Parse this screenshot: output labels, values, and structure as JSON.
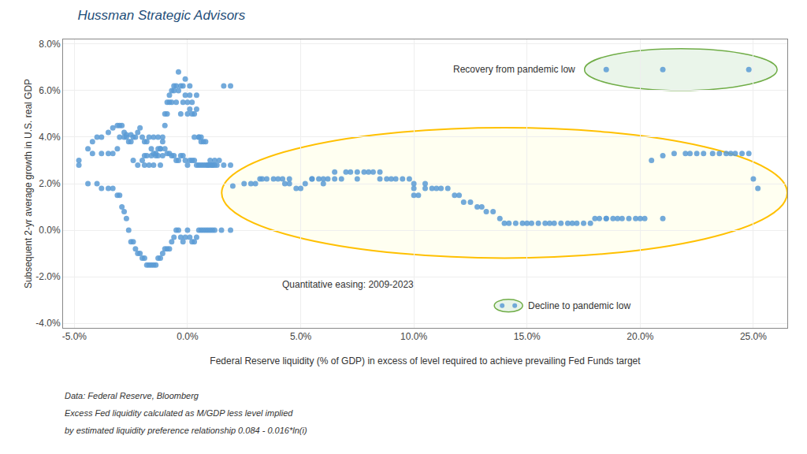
{
  "chart_data": {
    "type": "scatter",
    "title": "Hussman Strategic Advisors",
    "xlabel": "Federal Reserve liquidity (% of GDP) in excess of level required to achieve prevailing Fed Funds target",
    "ylabel": "Subsequent 2-yr average growth in U.S. real GDP",
    "color": "#5B9BD5",
    "grid": true,
    "xlim": [
      -0.055,
      0.265
    ],
    "ylim": [
      -0.042,
      0.082
    ],
    "xticks": [
      {
        "value": -0.05,
        "label": "-5.0%"
      },
      {
        "value": 0.0,
        "label": "0.0%"
      },
      {
        "value": 0.05,
        "label": "5.0%"
      },
      {
        "value": 0.1,
        "label": "10.0%"
      },
      {
        "value": 0.15,
        "label": "15.0%"
      },
      {
        "value": 0.2,
        "label": "20.0%"
      },
      {
        "value": 0.25,
        "label": "25.0%"
      }
    ],
    "yticks": [
      {
        "value": -0.04,
        "label": "-4.0%"
      },
      {
        "value": -0.02,
        "label": "-2.0%"
      },
      {
        "value": 0.0,
        "label": "0.0%"
      },
      {
        "value": 0.02,
        "label": "2.0%"
      },
      {
        "value": 0.04,
        "label": "4.0%"
      },
      {
        "value": 0.06,
        "label": "6.0%"
      },
      {
        "value": 0.08,
        "label": "8.0%"
      }
    ],
    "annotations": [
      "Quantitative easing: 2009-2023",
      "Recovery from pandemic low",
      "Decline to pandemic low",
      "Data: Federal Reserve, Bloomberg",
      "Excess Fed liquidity calculated as M/GDP less level implied",
      "by estimated liquidity preference relationship 0.084 - 0.016*ln(i)"
    ],
    "series": [
      {
        "x": [
          -0.048,
          -0.042,
          -0.038,
          -0.035,
          -0.033,
          -0.031,
          -0.03,
          -0.028,
          -0.027,
          -0.025,
          -0.024,
          -0.022,
          -0.02,
          -0.019,
          -0.019,
          -0.018,
          -0.017,
          -0.016,
          -0.015,
          -0.015,
          -0.014,
          -0.013,
          -0.013,
          -0.012,
          -0.012,
          -0.011,
          -0.011,
          -0.01,
          -0.01,
          -0.009,
          -0.009,
          -0.008,
          -0.008,
          -0.007,
          -0.007,
          -0.006,
          -0.006,
          -0.005,
          -0.005,
          -0.004,
          -0.004,
          -0.003,
          -0.003,
          -0.002,
          -0.002,
          -0.001,
          -0.001,
          0.0,
          0.0,
          0.001,
          0.001,
          0.001,
          0.002,
          0.002,
          0.003,
          0.003,
          0.004,
          0.004,
          0.005,
          0.005,
          0.006,
          0.006,
          0.007,
          0.008,
          0.009,
          0.01,
          0.011,
          0.012,
          0.013,
          0.014,
          0.016,
          0.019,
          -0.048,
          -0.044,
          -0.04,
          -0.038,
          -0.035,
          -0.033,
          -0.031,
          -0.03,
          -0.029,
          -0.028,
          -0.027,
          -0.026,
          -0.025,
          -0.024,
          -0.023,
          -0.022,
          -0.021,
          -0.02,
          -0.019,
          -0.018,
          -0.017,
          -0.016,
          -0.015,
          -0.014,
          -0.013,
          -0.012,
          -0.011,
          -0.01,
          -0.009,
          -0.008,
          -0.007,
          -0.006,
          -0.005,
          -0.004,
          -0.003,
          -0.002,
          -0.001,
          0.0,
          0.001,
          0.002,
          0.003,
          0.004,
          0.005,
          0.006,
          0.007,
          0.008,
          0.009,
          0.01,
          0.011,
          0.012,
          0.015,
          0.019,
          -0.044,
          -0.042,
          -0.04,
          -0.038,
          -0.035,
          -0.033,
          -0.031,
          -0.03,
          -0.029,
          -0.028,
          -0.027,
          -0.026,
          -0.025,
          -0.024,
          -0.023,
          -0.022,
          -0.021,
          -0.02,
          -0.019,
          -0.018,
          -0.017,
          -0.016,
          -0.015,
          -0.014,
          -0.013,
          -0.012,
          -0.011,
          -0.01,
          -0.009,
          -0.008,
          -0.007,
          -0.006,
          -0.005,
          -0.004,
          -0.003,
          -0.002,
          -0.001,
          0.0,
          0.001,
          0.002,
          0.003,
          0.004,
          0.005,
          0.006,
          0.007,
          0.008,
          0.009,
          0.01,
          0.011,
          0.012,
          0.016,
          0.019
        ],
        "values": [
          0.028,
          0.033,
          0.033,
          0.033,
          0.033,
          0.035,
          0.04,
          0.04,
          0.041,
          0.041,
          0.03,
          0.028,
          0.03,
          0.028,
          0.032,
          0.032,
          0.028,
          0.032,
          0.028,
          0.04,
          0.032,
          0.032,
          0.04,
          0.028,
          0.035,
          0.032,
          0.04,
          0.045,
          0.05,
          0.05,
          0.055,
          0.055,
          0.058,
          0.055,
          0.06,
          0.06,
          0.062,
          0.055,
          0.062,
          0.06,
          0.068,
          0.062,
          0.05,
          0.055,
          0.062,
          0.058,
          0.065,
          0.05,
          0.055,
          0.052,
          0.058,
          0.062,
          0.05,
          0.055,
          0.05,
          0.04,
          0.052,
          0.058,
          0.04,
          0.04,
          0.038,
          0.04,
          0.038,
          0.038,
          0.028,
          0.028,
          0.028,
          0.028,
          0.028,
          0.03,
          0.062,
          0.062,
          0.03,
          0.02,
          0.02,
          0.018,
          0.018,
          0.018,
          0.015,
          0.015,
          0.01,
          0.008,
          0.005,
          0.0,
          -0.005,
          -0.005,
          -0.008,
          -0.01,
          -0.01,
          -0.012,
          -0.012,
          -0.015,
          -0.015,
          -0.015,
          -0.015,
          -0.015,
          -0.012,
          -0.012,
          -0.01,
          -0.008,
          -0.008,
          -0.008,
          -0.005,
          -0.003,
          0.0,
          0.0,
          -0.003,
          -0.005,
          -0.003,
          0.0,
          -0.003,
          -0.005,
          -0.005,
          -0.003,
          0.0,
          0.0,
          0.0,
          0.0,
          0.0,
          0.0,
          0.0,
          0.0,
          0.0,
          0.0,
          0.035,
          0.038,
          0.04,
          0.04,
          0.042,
          0.044,
          0.045,
          0.045,
          0.045,
          0.042,
          0.04,
          0.038,
          0.038,
          0.04,
          0.04,
          0.042,
          0.044,
          0.04,
          0.038,
          0.038,
          0.04,
          0.035,
          0.033,
          0.033,
          0.035,
          0.035,
          0.038,
          0.035,
          0.033,
          0.033,
          0.032,
          0.032,
          0.03,
          0.03,
          0.032,
          0.032,
          0.03,
          0.028,
          0.03,
          0.03,
          0.03,
          0.028,
          0.028,
          0.028,
          0.028,
          0.028,
          0.028,
          0.03,
          0.028,
          0.03,
          0.028,
          0.028
        ]
      },
      {
        "x": [
          0.02,
          0.025,
          0.028,
          0.03,
          0.032,
          0.033,
          0.035,
          0.038,
          0.04,
          0.042,
          0.043,
          0.045,
          0.045,
          0.048,
          0.05,
          0.052,
          0.055,
          0.055,
          0.058,
          0.06,
          0.06,
          0.062,
          0.065,
          0.065,
          0.068,
          0.07,
          0.072,
          0.075,
          0.075,
          0.078,
          0.08,
          0.082,
          0.085,
          0.085,
          0.088,
          0.09,
          0.092,
          0.095,
          0.098,
          0.1,
          0.1,
          0.1,
          0.102,
          0.105,
          0.105,
          0.108,
          0.11,
          0.112,
          0.115,
          0.118,
          0.12,
          0.122,
          0.125,
          0.128,
          0.13,
          0.132,
          0.135,
          0.138,
          0.14,
          0.142,
          0.145,
          0.148,
          0.15,
          0.152,
          0.155,
          0.158,
          0.16,
          0.162,
          0.165,
          0.168,
          0.17,
          0.172,
          0.175,
          0.178,
          0.18,
          0.182,
          0.185,
          0.188,
          0.19,
          0.192,
          0.195,
          0.198,
          0.2,
          0.202,
          0.205,
          0.21,
          0.215,
          0.22,
          0.222,
          0.225,
          0.228,
          0.232,
          0.235,
          0.238,
          0.24,
          0.242,
          0.245,
          0.248,
          0.25,
          0.252
        ],
        "values": [
          0.019,
          0.02,
          0.02,
          0.02,
          0.022,
          0.022,
          0.022,
          0.022,
          0.022,
          0.022,
          0.02,
          0.02,
          0.022,
          0.018,
          0.018,
          0.02,
          0.022,
          0.022,
          0.022,
          0.022,
          0.02,
          0.022,
          0.022,
          0.025,
          0.022,
          0.025,
          0.025,
          0.025,
          0.022,
          0.025,
          0.025,
          0.025,
          0.025,
          0.022,
          0.022,
          0.022,
          0.022,
          0.022,
          0.022,
          0.02,
          0.018,
          0.015,
          0.015,
          0.018,
          0.02,
          0.018,
          0.018,
          0.018,
          0.018,
          0.015,
          0.015,
          0.012,
          0.012,
          0.01,
          0.01,
          0.008,
          0.008,
          0.005,
          0.003,
          0.003,
          0.003,
          0.003,
          0.003,
          0.003,
          0.003,
          0.003,
          0.003,
          0.003,
          0.003,
          0.003,
          0.003,
          0.003,
          0.003,
          0.003,
          0.005,
          0.005,
          0.005,
          0.005,
          0.005,
          0.005,
          0.005,
          0.005,
          0.005,
          0.005,
          0.03,
          0.032,
          0.033,
          0.033,
          0.033,
          0.033,
          0.033,
          0.033,
          0.033,
          0.033,
          0.033,
          0.033,
          0.033,
          0.033,
          0.022,
          0.018
        ]
      },
      {
        "x": [
          0.185,
          0.21,
          0.248
        ],
        "values": [
          0.069,
          0.069,
          0.069
        ]
      },
      {
        "x": [
          0.185,
          0.21
        ],
        "values": [
          0.005,
          0.005
        ]
      }
    ]
  }
}
